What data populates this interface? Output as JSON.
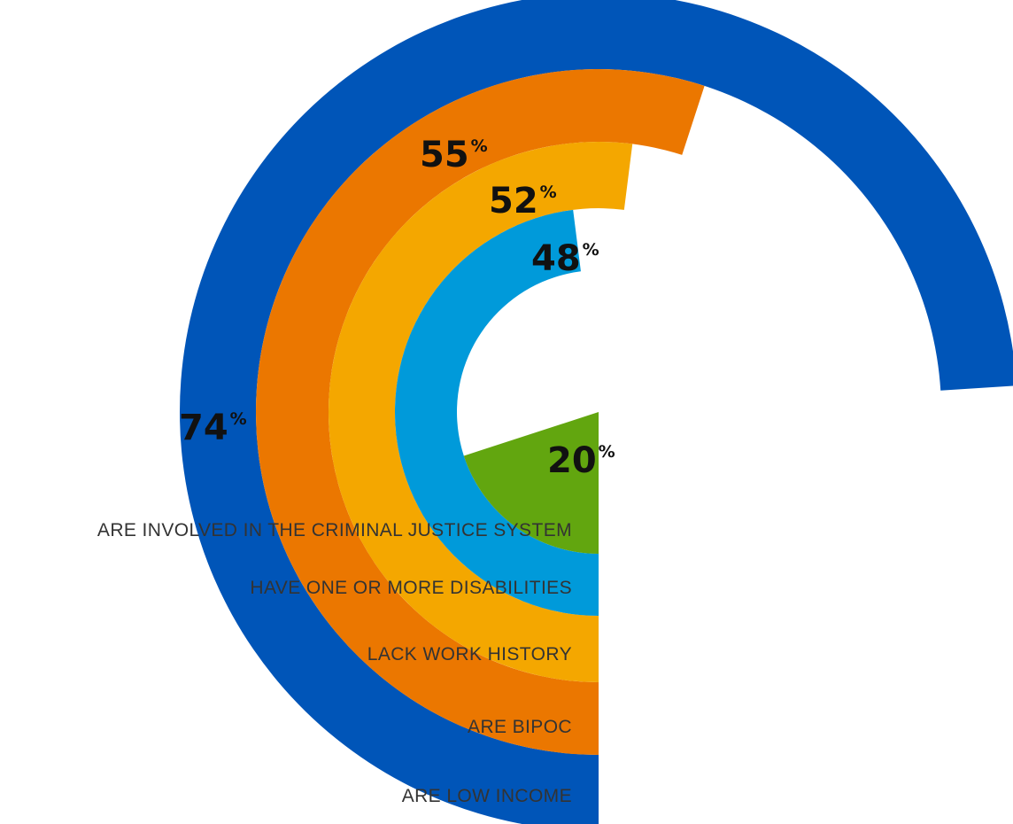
{
  "chart_data": {
    "type": "radial-bar",
    "title": "",
    "unit_symbol": "%",
    "value_max": 100,
    "series": [
      {
        "label": "ARE INVOLVED IN THE CRIMINAL JUSTICE SYSTEM",
        "value": 20,
        "display": "20",
        "color": "#62a60f"
      },
      {
        "label": "HAVE ONE OR MORE DISABILITIES",
        "value": 48,
        "display": "48",
        "color": "#009ada"
      },
      {
        "label": "LACK WORK HISTORY",
        "value": 52,
        "display": "52",
        "color": "#f4a700"
      },
      {
        "label": "ARE BIPOC",
        "value": 55,
        "display": "55",
        "color": "#eb7700"
      },
      {
        "label": "ARE LOW INCOME",
        "value": 74,
        "display": "74",
        "color": "#0055b8"
      }
    ]
  }
}
